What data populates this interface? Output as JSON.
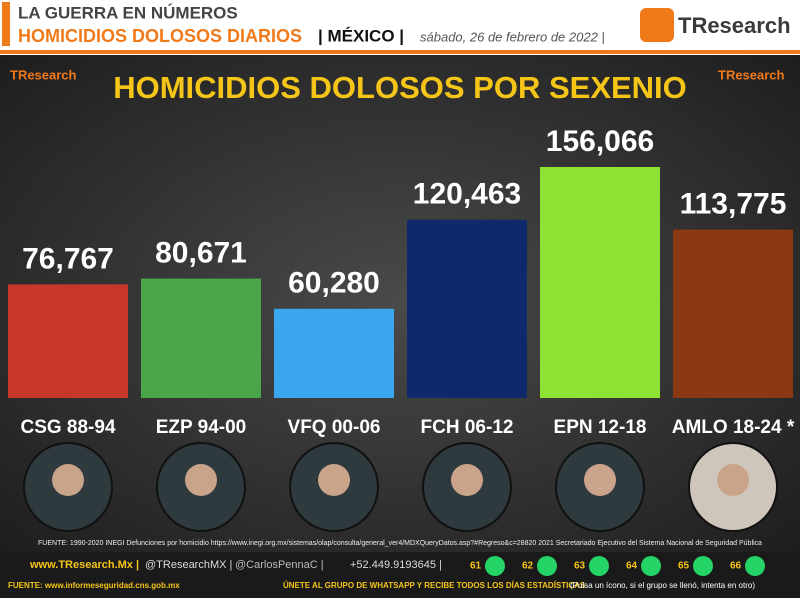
{
  "header": {
    "kicker": "LA GUERRA EN NÚMEROS",
    "headline": "HOMICIDIOS DOLOSOS DIARIOS",
    "place": "| MÉXICO |",
    "date": "sábado, 26 de febrero de 2022 |",
    "logo": "TResearch"
  },
  "chart_data": {
    "type": "bar",
    "title": "HOMICIDIOS DOLOSOS POR SEXENIO",
    "categories": [
      "CSG 88-94",
      "EZP 94-00",
      "VFQ 00-06",
      "FCH 06-12",
      "EPN 12-18",
      "AMLO 18-24 *"
    ],
    "values": [
      76767,
      80671,
      60280,
      120463,
      156066,
      113775
    ],
    "value_labels": [
      "76,767",
      "80,671",
      "60,280",
      "120,463",
      "156,066",
      "113,775"
    ],
    "colors": [
      "#c9372b",
      "#4aa649",
      "#3aa6ee",
      "#0e2a6a",
      "#8ee233",
      "#8a3913"
    ]
  },
  "footer": {
    "source": "FUENTE: 1990-2020 INEGI Defunciones por homicidio https://www.inegi.org.mx/sistemas/olap/consulta/general_ver4/MDXQueryDatos.asp?#Regreso&c=28820  2021 Secretariado Ejecutivo del Sistema Nacional de Seguridad Pública",
    "web": "www.TResearch.Mx |",
    "twitter1": "@TResearchMX |",
    "twitter2": "@CarlosPennaC |",
    "phone": "+52.449.9193645 |",
    "groups": [
      "61",
      "62",
      "63",
      "64",
      "65",
      "66"
    ],
    "source2": "FUENTE: www.informeseguridad.cns.gob.mx",
    "cta": "ÚNETE AL GRUPO DE WHATSAPP Y RECIBE TODOS LOS DÍAS ESTADÍSTICAS",
    "note": "(Pulsa un ícono, si el grupo se llenó, intenta en otro)"
  }
}
